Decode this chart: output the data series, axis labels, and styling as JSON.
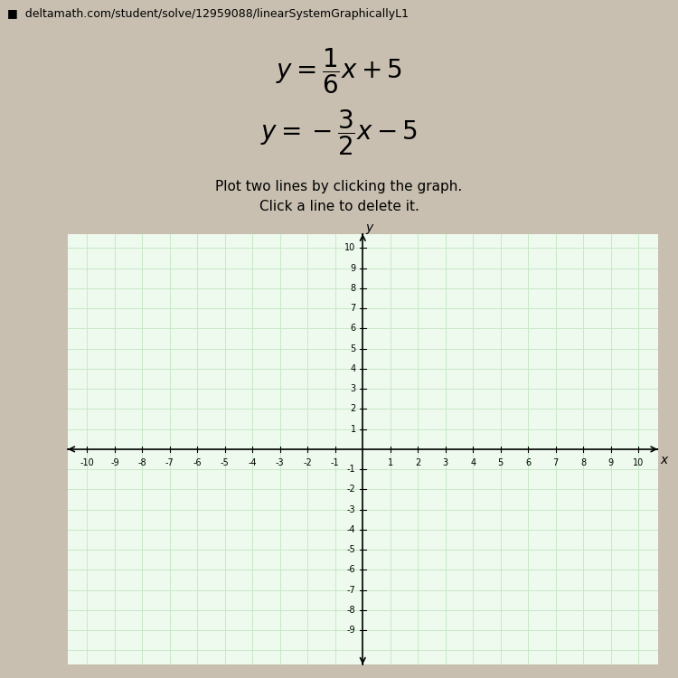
{
  "eq1_latex": "$y = \\dfrac{1}{6}x + 5$",
  "eq2_latex": "$y = -\\dfrac{3}{2}x - 5$",
  "xlim": [
    -10,
    10
  ],
  "ylim": [
    -10,
    10
  ],
  "x_ticks": [
    -10,
    -9,
    -8,
    -7,
    -6,
    -5,
    -4,
    -3,
    -2,
    -1,
    1,
    2,
    3,
    4,
    5,
    6,
    7,
    8,
    9,
    10
  ],
  "y_ticks": [
    -9,
    -8,
    -7,
    -6,
    -5,
    -4,
    -3,
    -2,
    -1,
    1,
    2,
    3,
    4,
    5,
    6,
    7,
    8,
    9,
    10
  ],
  "grid_color": "#c8e8c8",
  "axis_color": "#000000",
  "graph_bg": "#edfaed",
  "outer_bg": "#c8bfb0",
  "eq_fontsize": 20,
  "text1": "Plot two lines by clicking the graph.",
  "text2": "Click a line to delete it.",
  "url_text": "■  deltamath.com/student/solve/12959088/linearSystemGraphicallyL1",
  "tick_fontsize": 7,
  "label_fontsize": 11,
  "url_fontsize": 9
}
